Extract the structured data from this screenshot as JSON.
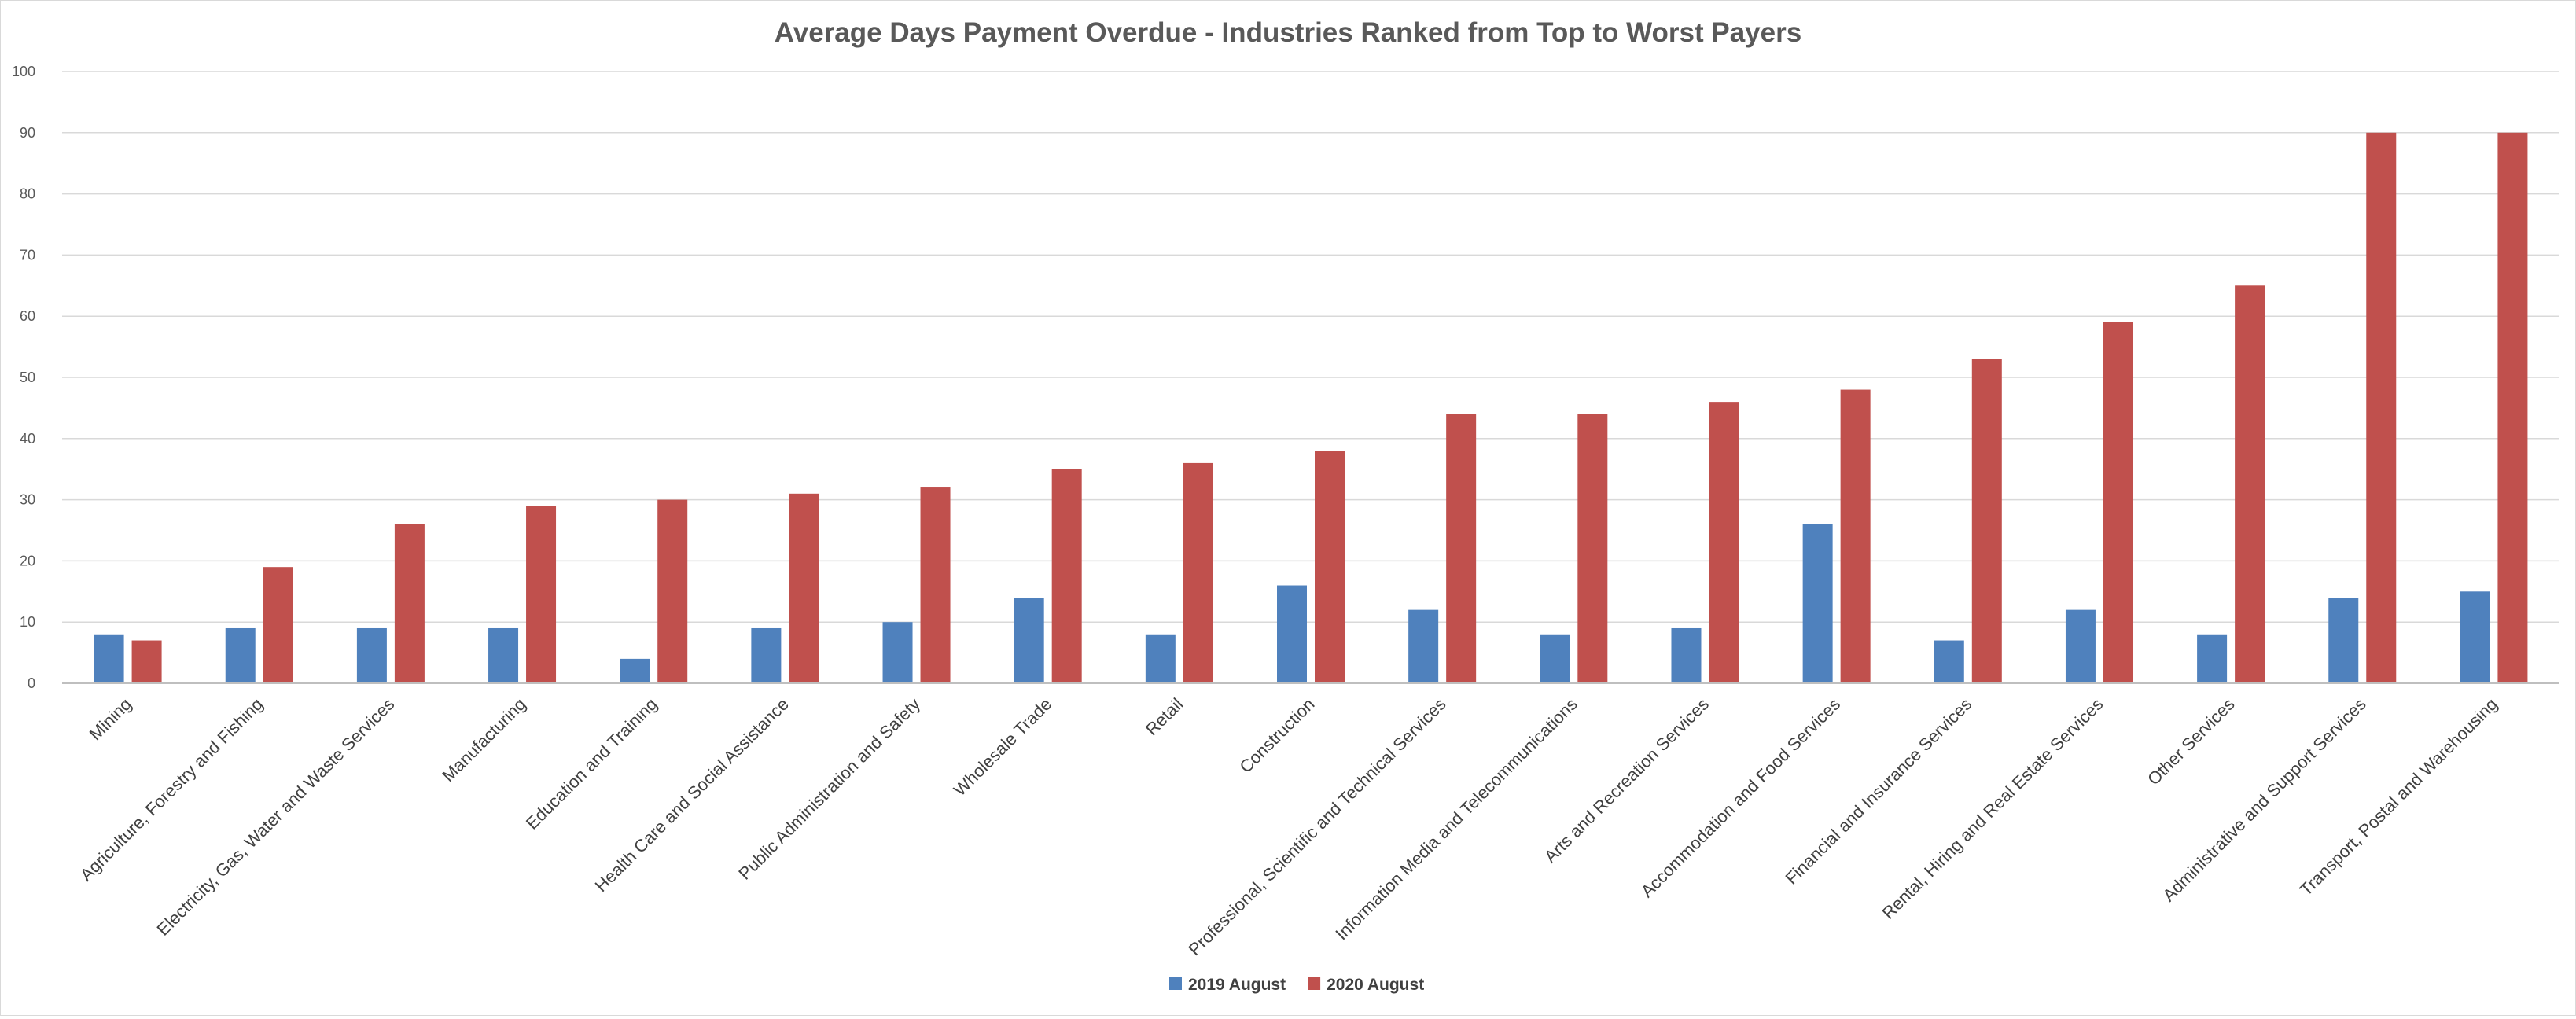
{
  "chart_data": {
    "type": "bar",
    "title": "Average Days Payment Overdue - Industries Ranked from Top to Worst Payers",
    "xlabel": "",
    "ylabel": "",
    "ylim": [
      0,
      100
    ],
    "yticks": [
      "0",
      "10",
      "20",
      "30",
      "40",
      "50",
      "60",
      "70",
      "80",
      "90",
      "100"
    ],
    "grid": true,
    "legend_position": "bottom",
    "categories": [
      "Mining",
      "Agriculture, Forestry and Fishing",
      "Electricity, Gas, Water and Waste Services",
      "Manufacturing",
      "Education and Training",
      "Health Care and Social Assistance",
      "Public Administration and Safety",
      "Wholesale Trade",
      "Retail",
      "Construction",
      "Professional, Scientific and Technical Services",
      "Information Media and Telecommunications",
      "Arts and Recreation Services",
      "Accommodation and Food Services",
      "Financial and Insurance Services",
      "Rental, Hiring and Real Estate Services",
      "Other Services",
      "Administrative and Support Services",
      "Transport, Postal and Warehousing"
    ],
    "series": [
      {
        "name": "2019 August",
        "color": "#4f81bd",
        "values": [
          8,
          9,
          9,
          9,
          4,
          9,
          10,
          14,
          8,
          16,
          12,
          8,
          9,
          26,
          7,
          12,
          8,
          14,
          15
        ]
      },
      {
        "name": "2020 August",
        "color": "#c0504d",
        "values": [
          7,
          19,
          26,
          29,
          30,
          31,
          32,
          35,
          36,
          38,
          44,
          44,
          46,
          48,
          53,
          59,
          65,
          90,
          90
        ]
      }
    ]
  }
}
